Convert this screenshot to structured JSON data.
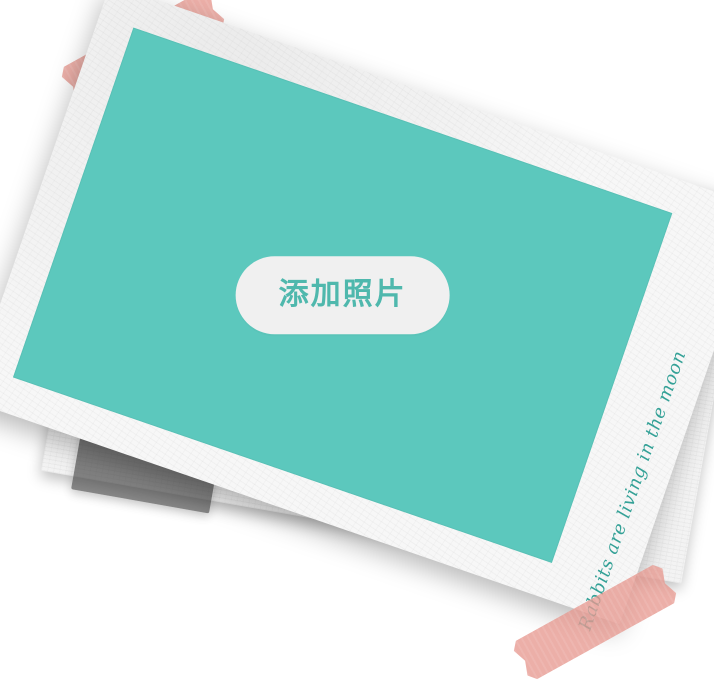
{
  "photo_card": {
    "button_label": "添加照片",
    "caption": "Rabbits are living in the moon"
  },
  "colors": {
    "photo_teal": "#5cc8bd",
    "button_bg": "#f0f0f0",
    "button_text": "#4fb8ad",
    "caption_text": "#2a9d92",
    "tape_pink": "#e7988f"
  }
}
